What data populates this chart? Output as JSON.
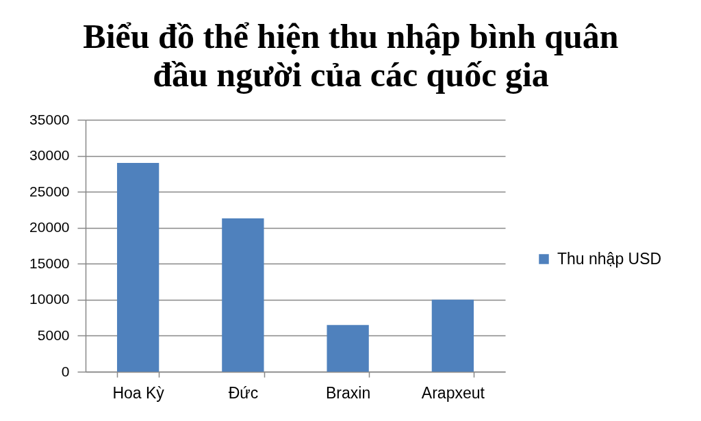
{
  "chart_data": {
    "type": "bar",
    "title": "Biểu đồ thể hiện thu nhập bình quân đầu người của các quốc gia",
    "categories": [
      "Hoa Kỳ",
      "Đức",
      "Braxin",
      "Arapxeut"
    ],
    "series": [
      {
        "name": "Thu nhập USD",
        "color": "#4f81bd",
        "values": [
          29000,
          21300,
          6500,
          10000
        ]
      }
    ],
    "ylim": [
      0,
      35000
    ],
    "yticks": [
      0,
      5000,
      10000,
      15000,
      20000,
      25000,
      30000,
      35000
    ],
    "grid": "y",
    "legend": "right"
  }
}
